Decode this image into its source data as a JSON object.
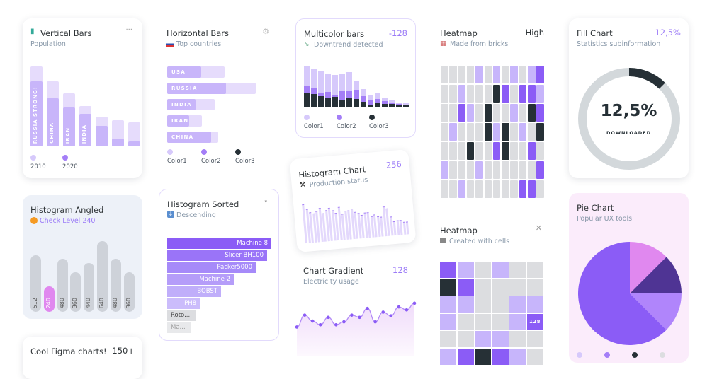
{
  "colors": {
    "light": "#d6c9fb",
    "mid": "#a47ef7",
    "purple": "#8b5cf6",
    "dark": "#263036",
    "gray": "#dcdde0",
    "pink": "#e088ef",
    "accent": "#9b7bf7"
  },
  "vertical_bars": {
    "title": "Vertical Bars",
    "subtitle": "Population",
    "icon": "bar-chart-icon",
    "menu_icon": "more-icon",
    "legend": [
      "2010",
      "2020"
    ],
    "chart_data": {
      "type": "bar",
      "labels": [
        "RUSSIA STRONG!",
        "CHINA",
        "IRAN",
        "INDIA",
        "",
        "",
        ""
      ],
      "series": [
        {
          "name": "2010",
          "values": [
            113,
            92,
            75,
            57,
            42,
            37,
            34
          ]
        },
        {
          "name": "2020",
          "values": [
            92,
            68,
            55,
            46,
            29,
            11,
            7
          ]
        }
      ]
    }
  },
  "horizontal_bars": {
    "title": "Horizontal Bars",
    "subtitle": "Top countries",
    "icon": "flag-icon",
    "settings_icon": "gear-icon",
    "legend": [
      "Color1",
      "Color2",
      "Color3"
    ],
    "chart_data": {
      "type": "bar",
      "orientation": "horizontal",
      "categories": [
        "USA",
        "RUSSIA",
        "INDIA",
        "IRAN",
        "CHINA"
      ],
      "front": [
        48,
        83,
        40,
        31,
        62
      ],
      "back": [
        81,
        125,
        67,
        49,
        72
      ]
    }
  },
  "multicolor": {
    "title": "Multicolor bars",
    "badge": "-128",
    "subtitle": "Downtrend detected",
    "icon": "trend-down-icon",
    "legend": [
      "Color1",
      "Color2",
      "Color3"
    ],
    "chart_data": {
      "type": "bar",
      "stacked": true,
      "series": [
        {
          "name": "Color3",
          "values": [
            19,
            18,
            15,
            12,
            14,
            10,
            12,
            11,
            7,
            3,
            5,
            4,
            4,
            3,
            2
          ]
        },
        {
          "name": "Color2",
          "values": [
            10,
            9,
            5,
            9,
            3,
            13,
            10,
            13,
            8,
            6,
            6,
            4,
            2,
            1,
            1
          ]
        },
        {
          "name": "Color1",
          "values": [
            28,
            27,
            31,
            26,
            28,
            23,
            27,
            12,
            10,
            7,
            8,
            4,
            3,
            2,
            2
          ]
        }
      ]
    }
  },
  "heatmap1": {
    "title": "Heatmap",
    "badge": "High",
    "subtitle": "Made from bricks",
    "icon": "calendar-icon",
    "chart_data": {
      "type": "heatmap",
      "levels": [
        "gray",
        "light",
        "purple",
        "dark"
      ],
      "rows": [
        [
          0,
          0,
          0,
          0,
          1,
          0,
          1,
          0,
          1,
          0,
          1,
          2
        ],
        [
          0,
          0,
          1,
          0,
          0,
          0,
          3,
          2,
          0,
          2,
          2,
          1
        ],
        [
          0,
          0,
          2,
          1,
          0,
          3,
          0,
          0,
          1,
          0,
          3,
          2
        ],
        [
          0,
          1,
          0,
          0,
          0,
          3,
          1,
          3,
          0,
          1,
          0,
          3
        ],
        [
          0,
          0,
          0,
          3,
          0,
          0,
          2,
          3,
          0,
          0,
          2,
          0
        ],
        [
          1,
          0,
          0,
          0,
          1,
          0,
          0,
          0,
          0,
          0,
          0,
          2
        ],
        [
          0,
          0,
          1,
          0,
          0,
          0,
          0,
          0,
          0,
          2,
          2,
          0
        ]
      ]
    }
  },
  "fill": {
    "title": "Fill Chart",
    "badge": "12,5%",
    "subtitle": "Statistics subinformation",
    "value_label": "12,5%",
    "caption": "DOWNLOADED",
    "chart_data": {
      "type": "pie",
      "donut": true,
      "value": 12.5
    }
  },
  "angled": {
    "title": "Histogram Angled",
    "subtitle": "Check Level 240",
    "icon": "warning-icon",
    "chart_data": {
      "type": "bar",
      "values": [
        512,
        240,
        480,
        360,
        440,
        640,
        480,
        360
      ],
      "highlight": 1
    }
  },
  "sorted": {
    "title": "Histogram Sorted",
    "subtitle": "Descending",
    "icon": "arrow-down-icon",
    "menu_icon": "chevron-down-icon",
    "chart_data": {
      "type": "bar",
      "orientation": "horizontal",
      "categories": [
        "Machine 8",
        "Slicer BH100",
        "Packer5000",
        "Machine 2",
        "BOBST",
        "PH8",
        "Roto...",
        "Ma..."
      ],
      "values": [
        147,
        141,
        125,
        94,
        76,
        46,
        40,
        33
      ]
    }
  },
  "histogram": {
    "title": "Histogram Chart",
    "badge": "256",
    "subtitle": "Production status",
    "icon": "tools-icon",
    "chart_data": {
      "type": "bar",
      "values": [
        54,
        47,
        42,
        40,
        43,
        47,
        39,
        43,
        46,
        42,
        38,
        46,
        36,
        40,
        40,
        42,
        37,
        35,
        32,
        35,
        35,
        29,
        31,
        28,
        27,
        41,
        38,
        26,
        19,
        20,
        20,
        17,
        17
      ]
    }
  },
  "gradient": {
    "title": "Chart Gradient",
    "badge": "128",
    "subtitle": "Electricity usage",
    "chart_data": {
      "type": "area",
      "values": [
        11,
        27,
        19,
        14,
        24,
        14,
        18,
        27,
        24,
        36,
        18,
        31,
        26,
        38,
        34,
        43
      ]
    }
  },
  "heatmap2": {
    "title": "Heatmap",
    "subtitle": "Created with cells",
    "icon": "folder-icon",
    "close_icon": "close-icon",
    "cell_label": "128",
    "chart_data": {
      "type": "heatmap",
      "rows": [
        [
          2,
          1,
          0,
          1,
          0,
          0
        ],
        [
          3,
          2,
          0,
          0,
          0,
          0
        ],
        [
          1,
          1,
          0,
          0,
          1,
          1
        ],
        [
          1,
          0,
          0,
          0,
          1,
          2
        ],
        [
          0,
          0,
          1,
          1,
          0,
          0
        ],
        [
          1,
          2,
          3,
          2,
          1,
          0
        ]
      ],
      "labeled_cell": [
        3,
        5
      ]
    }
  },
  "pie": {
    "title": "Pie Chart",
    "subtitle": "Popular UX tools",
    "chart_data": {
      "type": "pie",
      "values": [
        12.5,
        12.5,
        12.5,
        62.5
      ],
      "colors": [
        "#e088ef",
        "#4f3494",
        "#b085fb",
        "#8b5cf6"
      ],
      "legend_colors": [
        "#d6c9fb",
        "#a47ef7",
        "#263036",
        "#dcdde0"
      ]
    }
  },
  "cool": {
    "title": "Cool Figma charts!",
    "badge": "150+"
  }
}
